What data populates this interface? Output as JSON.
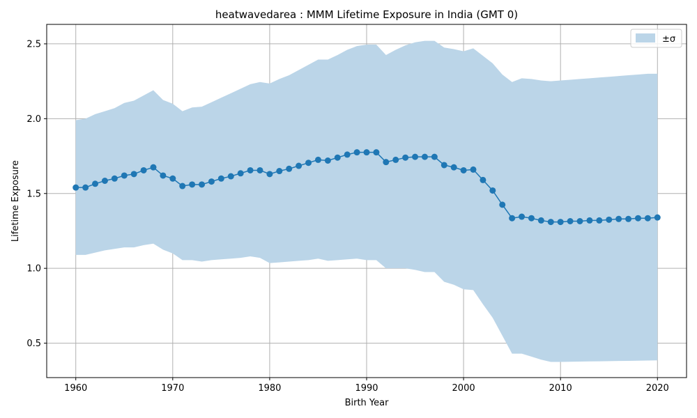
{
  "chart_data": {
    "type": "line",
    "title": "heatwavedarea : MMM Lifetime Exposure in India (GMT 0)",
    "xlabel": "Birth Year",
    "ylabel": "Lifetime Exposure",
    "xlim": [
      1957,
      2023
    ],
    "ylim": [
      0.27,
      2.63
    ],
    "xticks": [
      1960,
      1970,
      1980,
      1990,
      2000,
      2010,
      2020
    ],
    "xtick_labels": [
      "1960",
      "1970",
      "1980",
      "1990",
      "2000",
      "2010",
      "2020"
    ],
    "yticks": [
      0.5,
      1.0,
      1.5,
      2.0,
      2.5
    ],
    "ytick_labels": [
      "0.5",
      "1.0",
      "1.5",
      "2.0",
      "2.5"
    ],
    "grid": true,
    "legend": {
      "placement": "top-right",
      "entries": [
        "±σ"
      ]
    },
    "x": [
      1960,
      1961,
      1962,
      1963,
      1964,
      1965,
      1966,
      1967,
      1968,
      1969,
      1970,
      1971,
      1972,
      1973,
      1974,
      1975,
      1976,
      1977,
      1978,
      1979,
      1980,
      1981,
      1982,
      1983,
      1984,
      1985,
      1986,
      1987,
      1988,
      1989,
      1990,
      1991,
      1992,
      1993,
      1994,
      1995,
      1996,
      1997,
      1998,
      1999,
      2000,
      2001,
      2002,
      2003,
      2004,
      2005,
      2006,
      2007,
      2008,
      2009,
      2010,
      2011,
      2012,
      2013,
      2014,
      2015,
      2016,
      2017,
      2018,
      2019,
      2020
    ],
    "series": [
      {
        "values": [
          1.54,
          1.54,
          1.565,
          1.585,
          1.6,
          1.62,
          1.63,
          1.655,
          1.675,
          1.62,
          1.6,
          1.55,
          1.56,
          1.56,
          1.58,
          1.6,
          1.615,
          1.635,
          1.655,
          1.655,
          1.63,
          1.65,
          1.665,
          1.685,
          1.705,
          1.725,
          1.72,
          1.74,
          1.76,
          1.775,
          1.775,
          1.775,
          1.71,
          1.725,
          1.74,
          1.745,
          1.745,
          1.745,
          1.69,
          1.675,
          1.655,
          1.66,
          1.59,
          1.52,
          1.425,
          1.335,
          1.345,
          1.335,
          1.32,
          1.31,
          1.31,
          1.315,
          1.315,
          1.32,
          1.32,
          1.325,
          1.33,
          1.33,
          1.335,
          1.335,
          1.34
        ],
        "upper": [
          1.99,
          2.0,
          2.03,
          2.05,
          2.07,
          2.105,
          2.12,
          2.155,
          2.19,
          2.125,
          2.1,
          2.05,
          2.075,
          2.08,
          2.11,
          2.14,
          2.17,
          2.2,
          2.23,
          2.245,
          2.235,
          2.265,
          2.29,
          2.325,
          2.36,
          2.395,
          2.395,
          2.425,
          2.46,
          2.485,
          2.495,
          2.495,
          2.425,
          2.46,
          2.49,
          2.51,
          2.52,
          2.52,
          2.475,
          2.465,
          2.45,
          2.47,
          2.42,
          2.37,
          2.295,
          2.245,
          2.27,
          2.265,
          2.255,
          2.25,
          2.255,
          2.26,
          2.265,
          2.27,
          2.275,
          2.28,
          2.285,
          2.29,
          2.295,
          2.3,
          2.3
        ],
        "lower": [
          1.09,
          1.09,
          1.105,
          1.12,
          1.13,
          1.14,
          1.14,
          1.155,
          1.165,
          1.125,
          1.1,
          1.055,
          1.055,
          1.045,
          1.055,
          1.06,
          1.065,
          1.07,
          1.08,
          1.07,
          1.035,
          1.04,
          1.045,
          1.05,
          1.055,
          1.065,
          1.05,
          1.055,
          1.06,
          1.065,
          1.055,
          1.055,
          1.0,
          1.0,
          1.0,
          0.99,
          0.975,
          0.975,
          0.91,
          0.89,
          0.86,
          0.855,
          0.76,
          0.67,
          0.55,
          0.43,
          0.43,
          0.41,
          0.39,
          0.375,
          0.375,
          0.376,
          0.377,
          0.378,
          0.379,
          0.38,
          0.381,
          0.382,
          0.383,
          0.384,
          0.385
        ]
      }
    ],
    "colors": {
      "line": "#1f77b4",
      "band": "#bbd5e8",
      "grid": "#b0b0b0"
    }
  }
}
